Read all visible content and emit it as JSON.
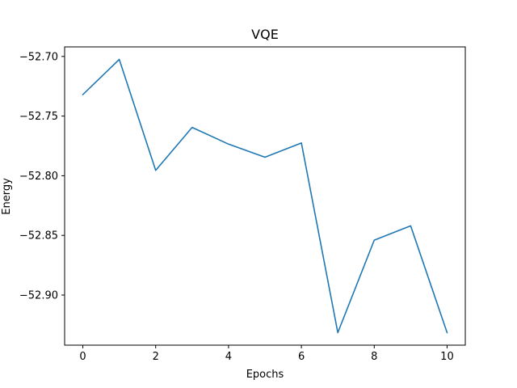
{
  "chart_data": {
    "type": "line",
    "title": "VQE",
    "xlabel": "Epochs",
    "ylabel": "Energy",
    "grid": false,
    "xlim": [
      -0.5,
      10.5
    ],
    "ylim": [
      -52.942,
      -52.692
    ],
    "x_ticks": [
      0,
      2,
      4,
      6,
      8,
      10
    ],
    "x_tick_labels": [
      "0",
      "2",
      "4",
      "6",
      "8",
      "10"
    ],
    "y_ticks": [
      -52.7,
      -52.75,
      -52.8,
      -52.85,
      -52.9
    ],
    "y_tick_labels": [
      "−52.70",
      "−52.75",
      "−52.80",
      "−52.85",
      "−52.90"
    ],
    "series": [
      {
        "color": "#1f77b4",
        "x": [
          0,
          1,
          2,
          3,
          4,
          5,
          6,
          7,
          8,
          9,
          10
        ],
        "y": [
          -52.732,
          -52.7025,
          -52.7955,
          -52.7595,
          -52.7735,
          -52.7845,
          -52.7725,
          -52.9315,
          -52.854,
          -52.842,
          -52.9315
        ]
      }
    ]
  }
}
